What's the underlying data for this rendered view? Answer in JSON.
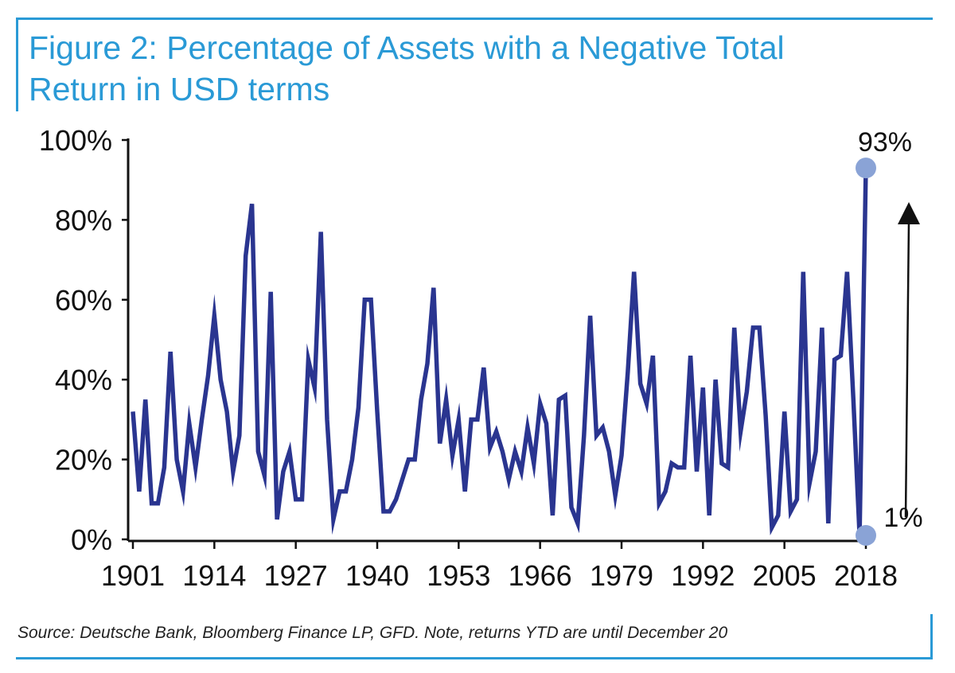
{
  "title_lines": [
    "Figure 2: Percentage of Assets with a Negative Total",
    "Return in USD terms"
  ],
  "source": "Source: Deutsche Bank, Bloomberg Finance LP, GFD. Note, returns YTD are until December 20",
  "colors": {
    "title": "#2a9ad6",
    "line": "#2a3590",
    "marker": "#8aa3d6",
    "axis": "#111111"
  },
  "chart_data": {
    "type": "line",
    "title": "Figure 2: Percentage of Assets with a Negative Total Return in USD terms",
    "xlabel": "",
    "ylabel": "",
    "xlim": [
      1901,
      2018
    ],
    "ylim": [
      0,
      100
    ],
    "y_ticks": [
      "0%",
      "20%",
      "40%",
      "60%",
      "80%",
      "100%"
    ],
    "x_ticks": [
      "1901",
      "1914",
      "1927",
      "1940",
      "1953",
      "1966",
      "1979",
      "1992",
      "2005",
      "2018"
    ],
    "grid": false,
    "series": [
      {
        "x": [
          1901,
          1902,
          1903,
          1904,
          1905,
          1906,
          1907,
          1908,
          1909,
          1910,
          1911,
          1912,
          1913,
          1914,
          1915,
          1916,
          1917,
          1918,
          1919,
          1920,
          1921,
          1922,
          1923,
          1924,
          1925,
          1926,
          1927,
          1928,
          1929,
          1930,
          1931,
          1932,
          1933,
          1934,
          1935,
          1936,
          1937,
          1938,
          1939,
          1940,
          1941,
          1942,
          1943,
          1944,
          1945,
          1946,
          1947,
          1948,
          1949,
          1950,
          1951,
          1952,
          1953,
          1954,
          1955,
          1956,
          1957,
          1958,
          1959,
          1960,
          1961,
          1962,
          1963,
          1964,
          1965,
          1966,
          1967,
          1968,
          1969,
          1970,
          1971,
          1972,
          1973,
          1974,
          1975,
          1976,
          1977,
          1978,
          1979,
          1980,
          1981,
          1982,
          1983,
          1984,
          1985,
          1986,
          1987,
          1988,
          1989,
          1990,
          1991,
          1992,
          1993,
          1994,
          1995,
          1996,
          1997,
          1998,
          1999,
          2000,
          2001,
          2002,
          2003,
          2004,
          2005,
          2006,
          2007,
          2008,
          2009,
          2010,
          2011,
          2012,
          2013,
          2014,
          2015,
          2016,
          2017,
          2018
        ],
        "values": [
          32,
          12,
          35,
          9,
          9,
          18,
          47,
          20,
          12,
          29,
          18,
          30,
          41,
          56,
          40,
          32,
          17,
          26,
          71,
          84,
          22,
          16,
          62,
          5,
          17,
          22,
          10,
          10,
          45,
          38,
          77,
          30,
          5,
          12,
          12,
          20,
          33,
          60,
          60,
          32,
          7,
          7,
          10,
          15,
          20,
          20,
          35,
          44,
          63,
          24,
          35,
          21,
          30,
          12,
          30,
          30,
          43,
          23,
          27,
          22,
          15,
          22,
          17,
          28,
          19,
          34,
          29,
          6,
          35,
          36,
          8,
          4,
          26,
          56,
          26,
          28,
          22,
          11,
          21,
          42,
          67,
          39,
          34,
          46,
          9,
          12,
          19,
          18,
          18,
          46,
          17,
          38,
          6,
          40,
          19,
          18,
          53,
          27,
          37,
          53,
          53,
          31,
          3,
          6,
          32,
          7,
          10,
          67,
          14,
          22,
          53,
          4,
          45,
          46,
          67,
          35,
          1,
          93
        ]
      }
    ],
    "annotations": [
      {
        "text": "93%",
        "x": 2018,
        "y": 93
      },
      {
        "text": "1%",
        "x": 2017,
        "y": 1
      }
    ]
  }
}
